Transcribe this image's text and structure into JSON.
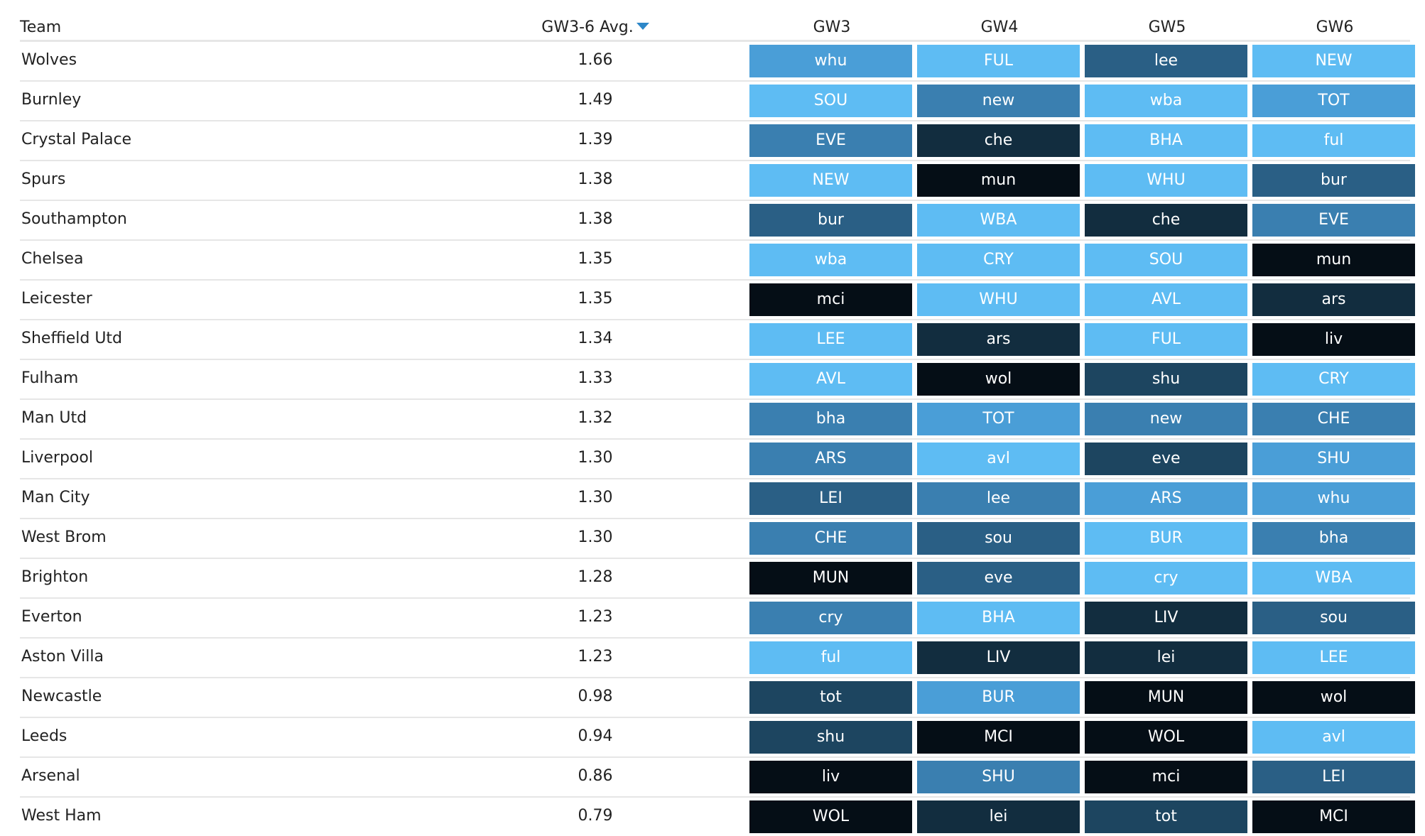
{
  "headers": {
    "team": "Team",
    "avg": "GW3-6 Avg.",
    "gw": [
      "GW3",
      "GW4",
      "GW5",
      "GW6"
    ]
  },
  "colors": {
    "level_1": "#5ebcf3",
    "level_2": "#4a9ed7",
    "level_3": "#3a7fb0",
    "level_4": "#2a5f85",
    "level_5": "#1d4560",
    "level_6": "#122d3f",
    "level_7": "#050e16"
  },
  "rows": [
    {
      "team": "Wolves",
      "avg": "1.66",
      "fixtures": [
        {
          "label": "whu",
          "level": 2
        },
        {
          "label": "FUL",
          "level": 1
        },
        {
          "label": "lee",
          "level": 4
        },
        {
          "label": "NEW",
          "level": 1
        }
      ]
    },
    {
      "team": "Burnley",
      "avg": "1.49",
      "fixtures": [
        {
          "label": "SOU",
          "level": 1
        },
        {
          "label": "new",
          "level": 3
        },
        {
          "label": "wba",
          "level": 1
        },
        {
          "label": "TOT",
          "level": 2
        }
      ]
    },
    {
      "team": "Crystal Palace",
      "avg": "1.39",
      "fixtures": [
        {
          "label": "EVE",
          "level": 3
        },
        {
          "label": "che",
          "level": 6
        },
        {
          "label": "BHA",
          "level": 1
        },
        {
          "label": "ful",
          "level": 1
        }
      ]
    },
    {
      "team": "Spurs",
      "avg": "1.38",
      "fixtures": [
        {
          "label": "NEW",
          "level": 1
        },
        {
          "label": "mun",
          "level": 7
        },
        {
          "label": "WHU",
          "level": 1
        },
        {
          "label": "bur",
          "level": 4
        }
      ]
    },
    {
      "team": "Southampton",
      "avg": "1.38",
      "fixtures": [
        {
          "label": "bur",
          "level": 4
        },
        {
          "label": "WBA",
          "level": 1
        },
        {
          "label": "che",
          "level": 6
        },
        {
          "label": "EVE",
          "level": 3
        }
      ]
    },
    {
      "team": "Chelsea",
      "avg": "1.35",
      "fixtures": [
        {
          "label": "wba",
          "level": 1
        },
        {
          "label": "CRY",
          "level": 1
        },
        {
          "label": "SOU",
          "level": 1
        },
        {
          "label": "mun",
          "level": 7
        }
      ]
    },
    {
      "team": "Leicester",
      "avg": "1.35",
      "fixtures": [
        {
          "label": "mci",
          "level": 7
        },
        {
          "label": "WHU",
          "level": 1
        },
        {
          "label": "AVL",
          "level": 1
        },
        {
          "label": "ars",
          "level": 6
        }
      ]
    },
    {
      "team": "Sheffield Utd",
      "avg": "1.34",
      "fixtures": [
        {
          "label": "LEE",
          "level": 1
        },
        {
          "label": "ars",
          "level": 6
        },
        {
          "label": "FUL",
          "level": 1
        },
        {
          "label": "liv",
          "level": 7
        }
      ]
    },
    {
      "team": "Fulham",
      "avg": "1.33",
      "fixtures": [
        {
          "label": "AVL",
          "level": 1
        },
        {
          "label": "wol",
          "level": 7
        },
        {
          "label": "shu",
          "level": 5
        },
        {
          "label": "CRY",
          "level": 1
        }
      ]
    },
    {
      "team": "Man Utd",
      "avg": "1.32",
      "fixtures": [
        {
          "label": "bha",
          "level": 3
        },
        {
          "label": "TOT",
          "level": 2
        },
        {
          "label": "new",
          "level": 3
        },
        {
          "label": "CHE",
          "level": 3
        }
      ]
    },
    {
      "team": "Liverpool",
      "avg": "1.30",
      "fixtures": [
        {
          "label": "ARS",
          "level": 3
        },
        {
          "label": "avl",
          "level": 1
        },
        {
          "label": "eve",
          "level": 5
        },
        {
          "label": "SHU",
          "level": 2
        }
      ]
    },
    {
      "team": "Man City",
      "avg": "1.30",
      "fixtures": [
        {
          "label": "LEI",
          "level": 4
        },
        {
          "label": "lee",
          "level": 3
        },
        {
          "label": "ARS",
          "level": 2
        },
        {
          "label": "whu",
          "level": 2
        }
      ]
    },
    {
      "team": "West Brom",
      "avg": "1.30",
      "fixtures": [
        {
          "label": "CHE",
          "level": 3
        },
        {
          "label": "sou",
          "level": 4
        },
        {
          "label": "BUR",
          "level": 1
        },
        {
          "label": "bha",
          "level": 3
        }
      ]
    },
    {
      "team": "Brighton",
      "avg": "1.28",
      "fixtures": [
        {
          "label": "MUN",
          "level": 7
        },
        {
          "label": "eve",
          "level": 4
        },
        {
          "label": "cry",
          "level": 1
        },
        {
          "label": "WBA",
          "level": 1
        }
      ]
    },
    {
      "team": "Everton",
      "avg": "1.23",
      "fixtures": [
        {
          "label": "cry",
          "level": 3
        },
        {
          "label": "BHA",
          "level": 1
        },
        {
          "label": "LIV",
          "level": 6
        },
        {
          "label": "sou",
          "level": 4
        }
      ]
    },
    {
      "team": "Aston Villa",
      "avg": "1.23",
      "fixtures": [
        {
          "label": "ful",
          "level": 1
        },
        {
          "label": "LIV",
          "level": 6
        },
        {
          "label": "lei",
          "level": 6
        },
        {
          "label": "LEE",
          "level": 1
        }
      ]
    },
    {
      "team": "Newcastle",
      "avg": "0.98",
      "fixtures": [
        {
          "label": "tot",
          "level": 5
        },
        {
          "label": "BUR",
          "level": 2
        },
        {
          "label": "MUN",
          "level": 7
        },
        {
          "label": "wol",
          "level": 7
        }
      ]
    },
    {
      "team": "Leeds",
      "avg": "0.94",
      "fixtures": [
        {
          "label": "shu",
          "level": 5
        },
        {
          "label": "MCI",
          "level": 7
        },
        {
          "label": "WOL",
          "level": 7
        },
        {
          "label": "avl",
          "level": 1
        }
      ]
    },
    {
      "team": "Arsenal",
      "avg": "0.86",
      "fixtures": [
        {
          "label": "liv",
          "level": 7
        },
        {
          "label": "SHU",
          "level": 3
        },
        {
          "label": "mci",
          "level": 7
        },
        {
          "label": "LEI",
          "level": 4
        }
      ]
    },
    {
      "team": "West Ham",
      "avg": "0.79",
      "fixtures": [
        {
          "label": "WOL",
          "level": 7
        },
        {
          "label": "lei",
          "level": 6
        },
        {
          "label": "tot",
          "level": 5
        },
        {
          "label": "MCI",
          "level": 7
        }
      ]
    }
  ]
}
